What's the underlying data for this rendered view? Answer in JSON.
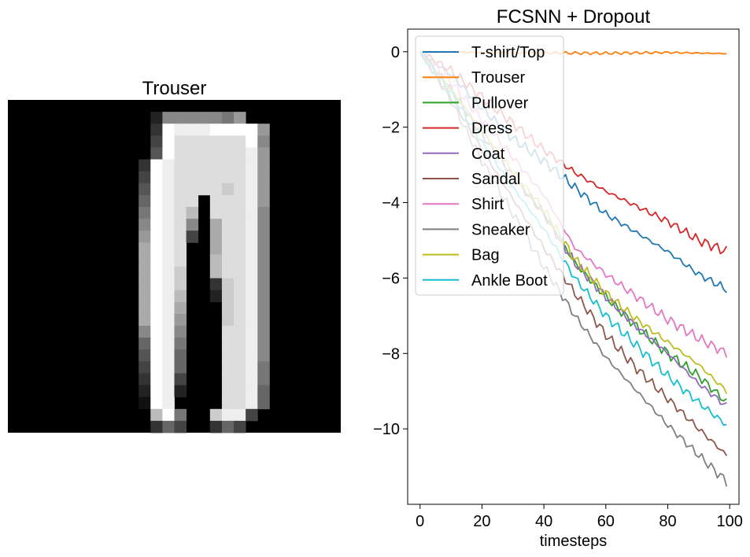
{
  "image_panel": {
    "title": "Trouser",
    "grid_size": 28,
    "pixels": [
      "0000000000000000000000000000",
      "0000000000002888887900000000",
      "0000000000003FEEEFFFF9000000",
      "0000000000004FDDDDDDF8000000",
      "0000000000005FDDDDDDE9000000",
      "000000000003FEDDDDDDE9000000",
      "000000000004FEDDDDDDE9000000",
      "000000000005FEDDDDCDE9000000",
      "000000000006FEDD0DDDE9000000",
      "000000000007FEDB0DDDE8000000",
      "000000000008FED80ADDE8000000",
      "000000000009FED40ADDE8000000",
      "00000000000AFED00ADDE8000000",
      "00000000000AFED00BDDE8000000",
      "00000000000AFEC00BDDE8000000",
      "00000000000AFEC003CDE8000000",
      "00000000000AFEB002CDE8000000",
      "00000000000AFEA000CDE8000000",
      "00000000000AFE9000CDE8000000",
      "000000000008FE8000DDE8000000",
      "000000000006FE7000DDE8000000",
      "000000000005FE6000DDE8000000",
      "000000000004FE6000DDE7000000",
      "000000000003FE4000DDE7000000",
      "000000000002FE2000DDE6000000",
      "000000000001FE0000DDE6000000",
      "000000000000BF700CEE40000000",
      "0000000000003640036400000000"
    ]
  },
  "chart_data": {
    "type": "line",
    "title": "FCSNN + Dropout",
    "xlabel": "timesteps",
    "ylabel": "",
    "xlim": [
      -4,
      103
    ],
    "ylim": [
      -12.0,
      0.6
    ],
    "xticks": [
      0,
      20,
      40,
      60,
      80,
      100
    ],
    "yticks": [
      0,
      -2,
      -4,
      -6,
      -8,
      -10
    ],
    "ytick_labels": [
      "0",
      "−2",
      "−4",
      "−6",
      "−8",
      "−10"
    ],
    "xtick_labels": [
      "0",
      "20",
      "40",
      "60",
      "80",
      "100"
    ],
    "grid": false,
    "legend_position": "top-left",
    "n_points": 100,
    "series": [
      {
        "name": "T-shirt/Top",
        "color": "#1f77b4",
        "anchors": [
          [
            0,
            0
          ],
          [
            10,
            -0.6
          ],
          [
            20,
            -1.5
          ],
          [
            30,
            -2.3
          ],
          [
            40,
            -2.9
          ],
          [
            50,
            -3.6
          ],
          [
            60,
            -4.3
          ],
          [
            70,
            -4.8
          ],
          [
            80,
            -5.3
          ],
          [
            90,
            -5.9
          ],
          [
            99,
            -6.3
          ]
        ]
      },
      {
        "name": "Trouser",
        "color": "#ff7f0e",
        "anchors": [
          [
            0,
            0
          ],
          [
            20,
            -0.02
          ],
          [
            40,
            -0.03
          ],
          [
            60,
            -0.04
          ],
          [
            80,
            -0.02
          ],
          [
            99,
            -0.05
          ]
        ]
      },
      {
        "name": "Pullover",
        "color": "#2ca02c",
        "anchors": [
          [
            0,
            0
          ],
          [
            10,
            -1.0
          ],
          [
            20,
            -2.2
          ],
          [
            30,
            -3.3
          ],
          [
            40,
            -4.3
          ],
          [
            50,
            -5.6
          ],
          [
            60,
            -6.5
          ],
          [
            70,
            -7.3
          ],
          [
            80,
            -8.0
          ],
          [
            90,
            -8.6
          ],
          [
            99,
            -9.3
          ]
        ]
      },
      {
        "name": "Dress",
        "color": "#d62728",
        "anchors": [
          [
            0,
            0
          ],
          [
            10,
            -0.5
          ],
          [
            20,
            -1.2
          ],
          [
            30,
            -1.9
          ],
          [
            40,
            -2.6
          ],
          [
            50,
            -3.2
          ],
          [
            60,
            -3.7
          ],
          [
            70,
            -4.1
          ],
          [
            80,
            -4.5
          ],
          [
            90,
            -5.0
          ],
          [
            99,
            -5.3
          ]
        ]
      },
      {
        "name": "Coat",
        "color": "#9467bd",
        "anchors": [
          [
            0,
            0
          ],
          [
            10,
            -1.0
          ],
          [
            20,
            -2.2
          ],
          [
            30,
            -3.3
          ],
          [
            40,
            -4.3
          ],
          [
            50,
            -5.6
          ],
          [
            60,
            -6.5
          ],
          [
            70,
            -7.3
          ],
          [
            80,
            -8.0
          ],
          [
            90,
            -8.8
          ],
          [
            99,
            -9.4
          ]
        ]
      },
      {
        "name": "Sandal",
        "color": "#8c564b",
        "anchors": [
          [
            0,
            0
          ],
          [
            10,
            -1.2
          ],
          [
            20,
            -2.6
          ],
          [
            30,
            -3.9
          ],
          [
            40,
            -5.2
          ],
          [
            50,
            -6.4
          ],
          [
            60,
            -7.5
          ],
          [
            70,
            -8.4
          ],
          [
            80,
            -9.2
          ],
          [
            90,
            -10.0
          ],
          [
            99,
            -10.7
          ]
        ]
      },
      {
        "name": "Shirt",
        "color": "#e377c2",
        "anchors": [
          [
            0,
            0
          ],
          [
            10,
            -0.8
          ],
          [
            20,
            -1.8
          ],
          [
            30,
            -2.8
          ],
          [
            40,
            -3.8
          ],
          [
            50,
            -5.2
          ],
          [
            60,
            -5.9
          ],
          [
            70,
            -6.5
          ],
          [
            80,
            -7.1
          ],
          [
            90,
            -7.6
          ],
          [
            99,
            -8.0
          ]
        ]
      },
      {
        "name": "Sneaker",
        "color": "#7f7f7f",
        "anchors": [
          [
            0,
            0
          ],
          [
            10,
            -1.3
          ],
          [
            20,
            -2.9
          ],
          [
            30,
            -4.3
          ],
          [
            40,
            -5.7
          ],
          [
            50,
            -7.0
          ],
          [
            60,
            -8.1
          ],
          [
            70,
            -9.0
          ],
          [
            80,
            -9.9
          ],
          [
            90,
            -10.7
          ],
          [
            99,
            -11.4
          ]
        ]
      },
      {
        "name": "Bag",
        "color": "#bcbd22",
        "anchors": [
          [
            0,
            0
          ],
          [
            10,
            -1.0
          ],
          [
            20,
            -2.1
          ],
          [
            30,
            -3.2
          ],
          [
            40,
            -4.2
          ],
          [
            50,
            -5.5
          ],
          [
            60,
            -6.4
          ],
          [
            70,
            -7.1
          ],
          [
            80,
            -7.7
          ],
          [
            90,
            -8.3
          ],
          [
            99,
            -9.0
          ]
        ]
      },
      {
        "name": "Ankle Boot",
        "color": "#17becf",
        "anchors": [
          [
            0,
            0
          ],
          [
            10,
            -1.1
          ],
          [
            20,
            -2.4
          ],
          [
            30,
            -3.6
          ],
          [
            40,
            -4.7
          ],
          [
            50,
            -6.0
          ],
          [
            60,
            -7.0
          ],
          [
            70,
            -7.8
          ],
          [
            80,
            -8.6
          ],
          [
            90,
            -9.3
          ],
          [
            99,
            -9.9
          ]
        ]
      }
    ]
  }
}
